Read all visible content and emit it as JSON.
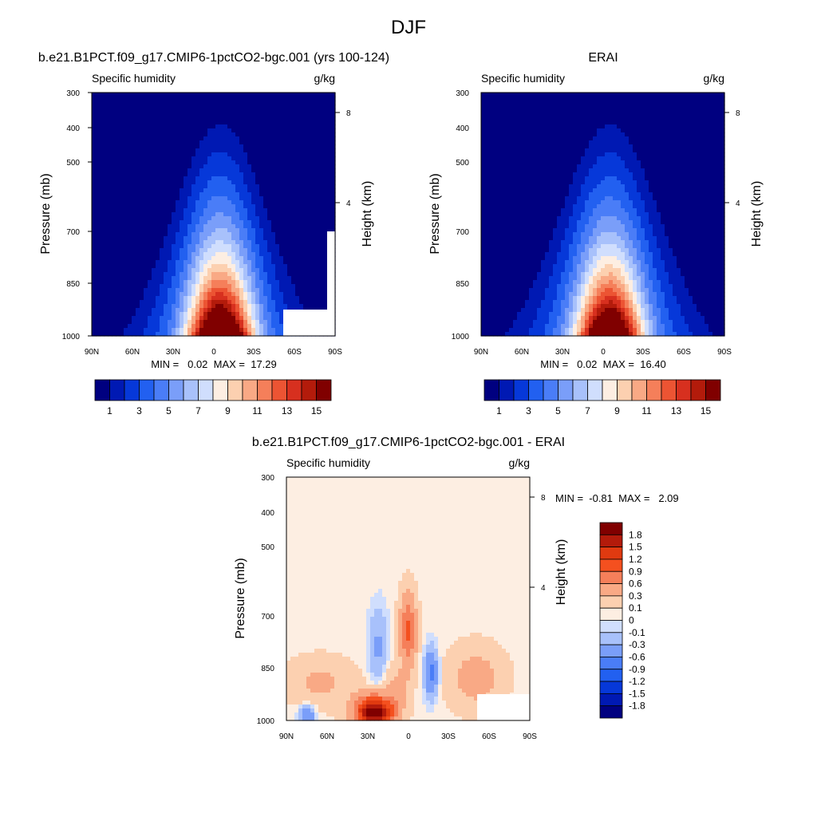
{
  "page_title": "DJF",
  "colors": {
    "model_levels": [
      "#000080",
      "#0019b3",
      "#0638d9",
      "#2260f0",
      "#4a7df7",
      "#7a9ef9",
      "#a8c1fb",
      "#d0defd",
      "#fdeee2",
      "#fcd0b0",
      "#f9a985",
      "#f57f5a",
      "#ec5433",
      "#d7301f",
      "#b31b0b",
      "#800000"
    ],
    "diff_levels": [
      "#000080",
      "#0019b3",
      "#0638d9",
      "#2260f0",
      "#4a7df7",
      "#7a9ef9",
      "#a8c1fb",
      "#d0defd",
      "#fdeee2",
      "#fcd0b0",
      "#f9a985",
      "#f57f5a",
      "#f4501f",
      "#e03a10",
      "#b31b0b",
      "#800000"
    ],
    "missing": "#ffffff"
  },
  "panels": [
    {
      "title": "b.e21.B1PCT.f09_g17.CMIP6-1pctCO2-bgc.001 (yrs 100-124)",
      "left_label": "Specific humidity",
      "right_label": "g/kg",
      "ylabel": "Pressure (mb)",
      "ylabel_right": "Height (km)",
      "minmax": "MIN =   0.02  MAX =  17.29"
    },
    {
      "title": "ERAI",
      "left_label": "Specific humidity",
      "right_label": "g/kg",
      "ylabel": "Pressure (mb)",
      "ylabel_right": "Height (km)",
      "minmax": "MIN =   0.02  MAX =  16.40"
    },
    {
      "title": "b.e21.B1PCT.f09_g17.CMIP6-1pctCO2-bgc.001 - ERAI",
      "left_label": "Specific humidity",
      "right_label": "g/kg",
      "ylabel": "Pressure (mb)",
      "ylabel_right": "Height (km)",
      "minmax": "MIN =  -0.81  MAX =   2.09"
    }
  ],
  "colorbar_model": {
    "labels": [
      "1",
      "3",
      "5",
      "7",
      "9",
      "11",
      "13",
      "15"
    ]
  },
  "colorbar_diff": {
    "labels": [
      "1.8",
      "1.5",
      "1.2",
      "0.9",
      "0.6",
      "0.3",
      "0.1",
      "0",
      "-0.1",
      "-0.3",
      "-0.6",
      "-0.9",
      "-1.2",
      "-1.5",
      "-1.8"
    ]
  },
  "chart_data": [
    {
      "type": "heatmap",
      "title": "b.e21.B1PCT.f09_g17.CMIP6-1pctCO2-bgc.001 (yrs 100-124)",
      "variable": "Specific humidity",
      "units": "g/kg",
      "x_ticks": [
        "90N",
        "60N",
        "30N",
        "0",
        "30S",
        "60S",
        "90S"
      ],
      "y_ticks": [
        300,
        400,
        500,
        700,
        850,
        1000
      ],
      "y2_ticks": [
        8,
        4
      ],
      "ylabel": "Pressure (mb)",
      "y2label": "Height (km)",
      "min": 0.02,
      "max": 17.29,
      "core": {
        "lat": -5,
        "top_pressure_mb": 380,
        "peak_value": 17.29
      }
    },
    {
      "type": "heatmap",
      "title": "ERAI",
      "variable": "Specific humidity",
      "units": "g/kg",
      "x_ticks": [
        "90N",
        "60N",
        "30N",
        "0",
        "30S",
        "60S",
        "90S"
      ],
      "y_ticks": [
        300,
        400,
        500,
        700,
        850,
        1000
      ],
      "y2_ticks": [
        8,
        4
      ],
      "ylabel": "Pressure (mb)",
      "y2label": "Height (km)",
      "min": 0.02,
      "max": 16.4,
      "core": {
        "lat": -5,
        "top_pressure_mb": 380,
        "peak_value": 16.4
      }
    },
    {
      "type": "heatmap",
      "title": "b.e21.B1PCT.f09_g17.CMIP6-1pctCO2-bgc.001 - ERAI",
      "variable": "Specific humidity",
      "units": "g/kg",
      "x_ticks": [
        "90N",
        "60N",
        "30N",
        "0",
        "30S",
        "60S",
        "90S"
      ],
      "y_ticks": [
        300,
        400,
        500,
        700,
        850,
        1000
      ],
      "y2_ticks": [
        8,
        4
      ],
      "ylabel": "Pressure (mb)",
      "y2label": "Height (km)",
      "min": -0.81,
      "max": 2.09
    }
  ]
}
